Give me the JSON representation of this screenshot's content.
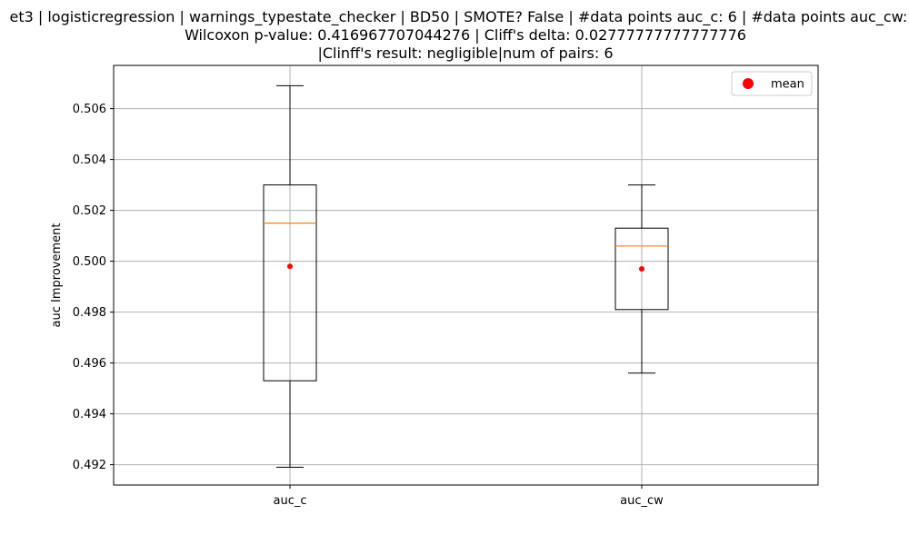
{
  "chart_data": {
    "type": "box",
    "title_lines": [
      "et3 | logisticregression | warnings_typestate_checker | BD50 | SMOTE? False | #data points auc_c: 6 | #data points auc_cw: 6",
      "Wilcoxon p-value: 0.416967707044276 | Cliff's delta: 0.02777777777777776",
      "|Clinff's result: negligible|num of pairs: 6"
    ],
    "ylabel": "auc Improvement",
    "xlabel": "",
    "categories": [
      "auc_c",
      "auc_cw"
    ],
    "ylim": [
      0.4912,
      0.5077
    ],
    "yticks": [
      0.492,
      0.494,
      0.496,
      0.498,
      0.5,
      0.502,
      0.504,
      0.506
    ],
    "grid": true,
    "legend": {
      "position": "top-right",
      "entries": [
        {
          "label": "mean",
          "color": "#ff0000",
          "marker": "circle"
        }
      ]
    },
    "boxes": [
      {
        "category": "auc_c",
        "whisker_low": 0.4919,
        "q1": 0.4953,
        "median": 0.5015,
        "q3": 0.503,
        "whisker_high": 0.5069,
        "mean": 0.4998
      },
      {
        "category": "auc_cw",
        "whisker_low": 0.4956,
        "q1": 0.4981,
        "median": 0.5006,
        "q3": 0.5013,
        "whisker_high": 0.503,
        "mean": 0.4997
      }
    ],
    "colors": {
      "box": "#000000",
      "median": "#ff7f0e",
      "mean": "#ff0000",
      "grid": "#b0b0b0"
    }
  }
}
